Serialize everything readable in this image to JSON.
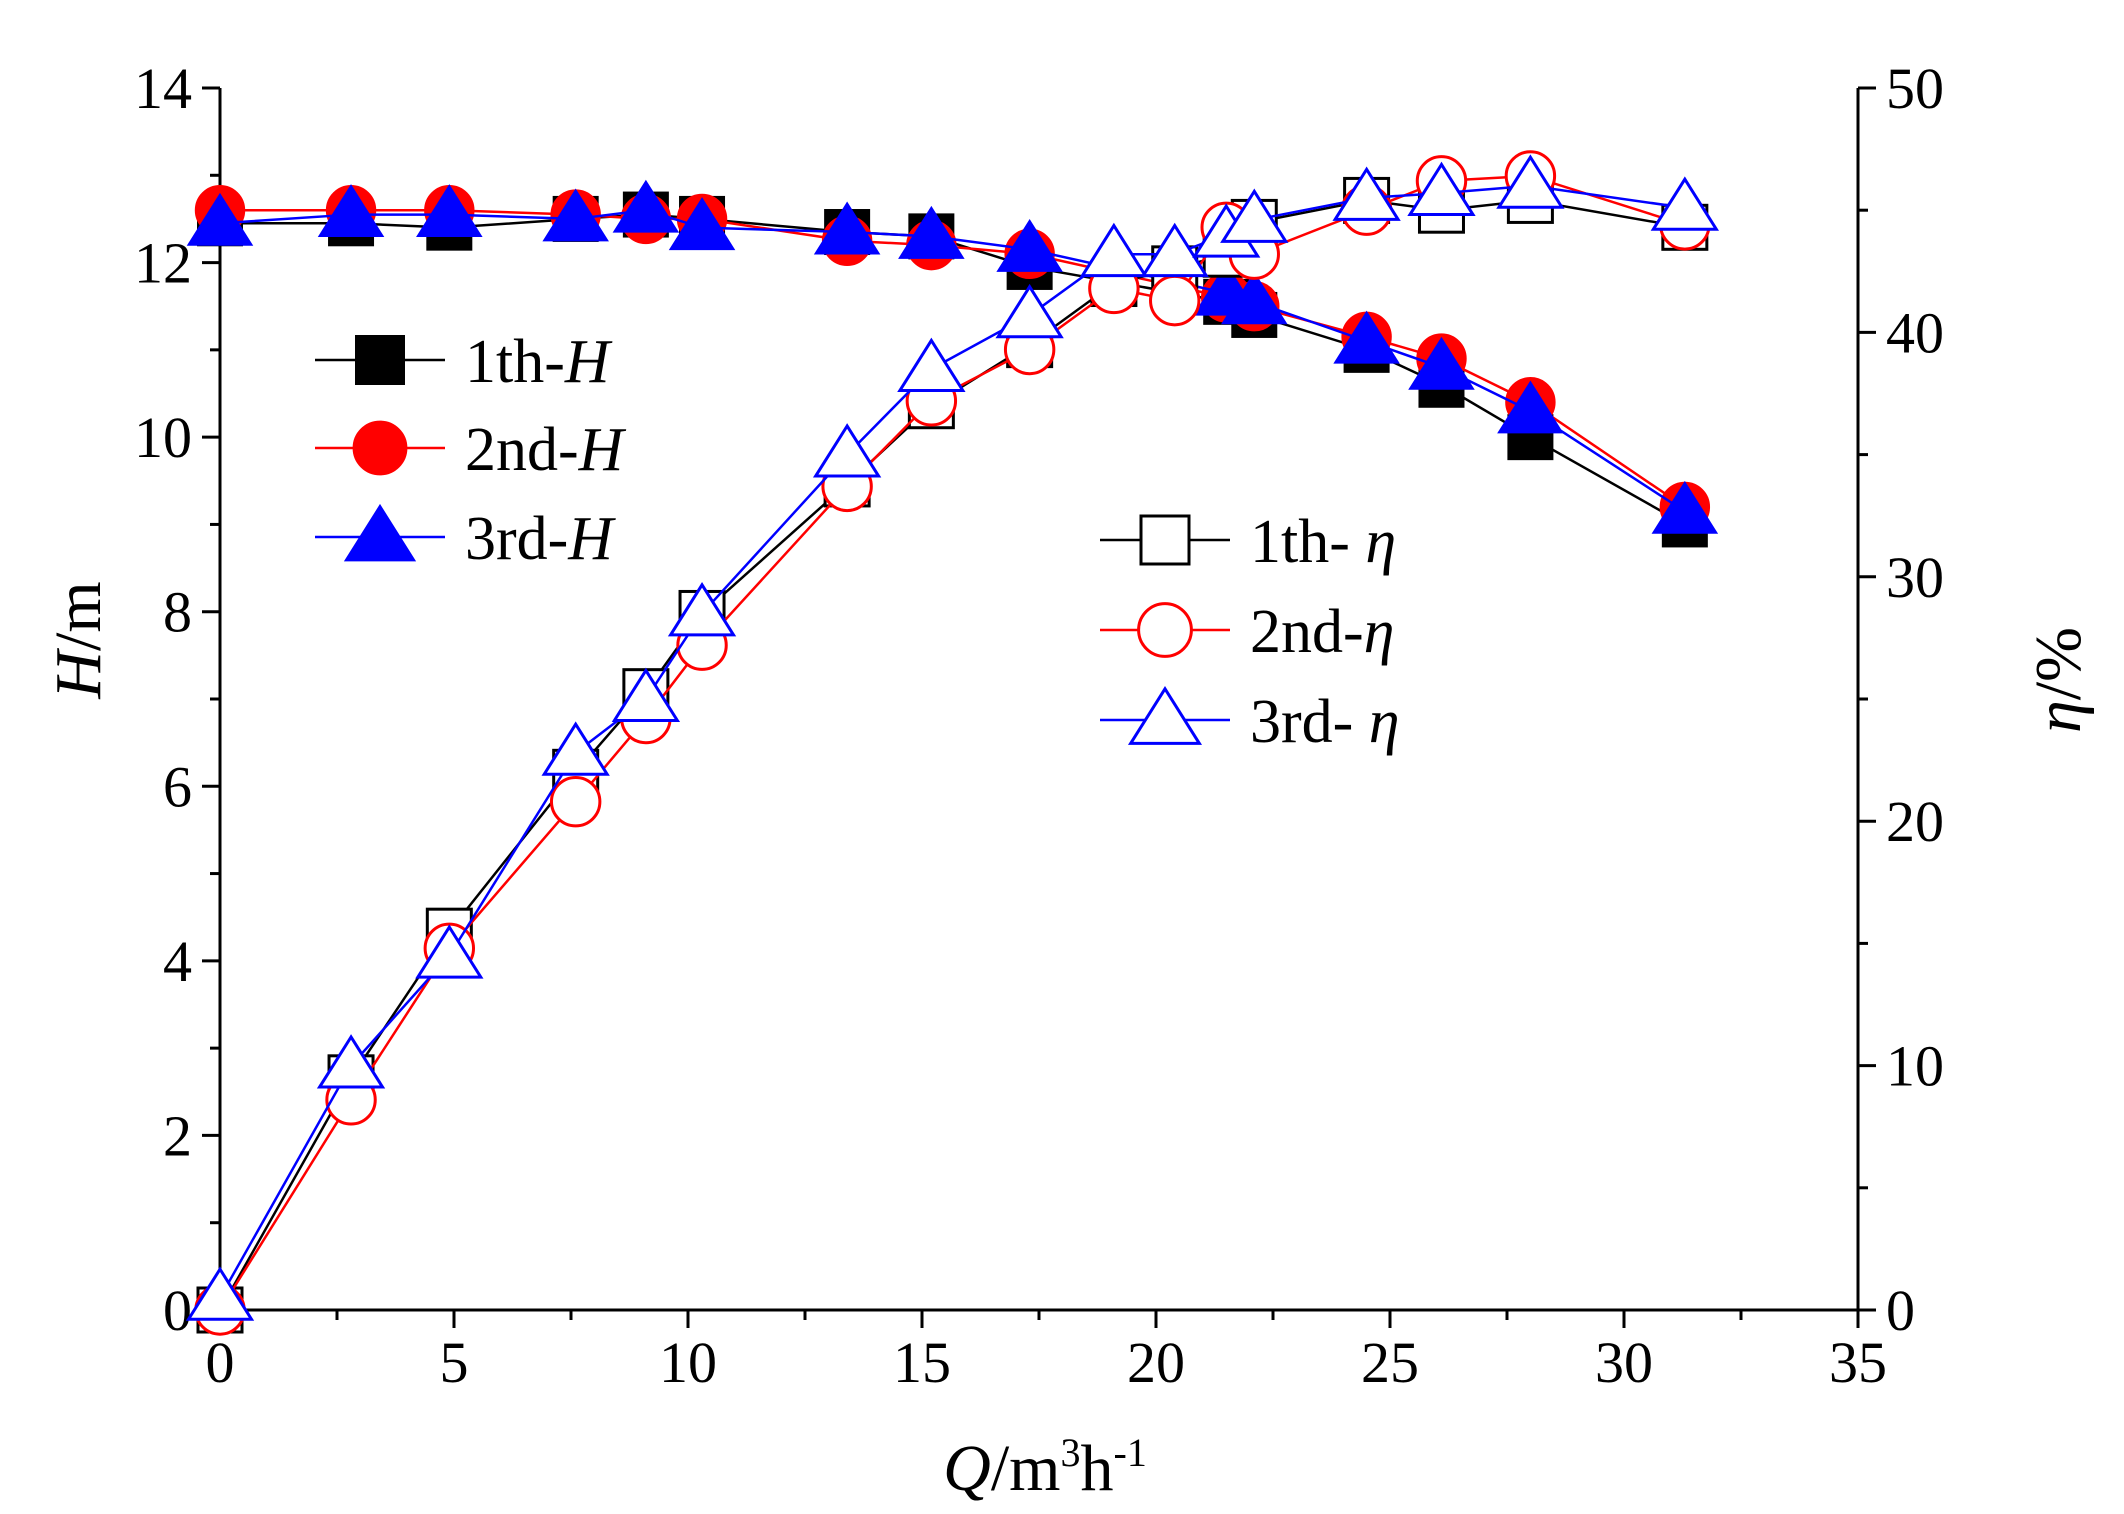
{
  "chart_data": {
    "type": "line",
    "xlabel": {
      "var": "Q",
      "unit_prefix": "/m",
      "sup1": "3",
      "mid": "h",
      "sup2": "-1"
    },
    "ylabel_left": {
      "var": "H",
      "unit": "/m"
    },
    "ylabel_right": {
      "var": "η",
      "unit": "/%"
    },
    "xlim": [
      0,
      35
    ],
    "ylim_left": [
      0,
      14
    ],
    "ylim_right": [
      0,
      50
    ],
    "xticks": [
      0,
      5,
      10,
      15,
      20,
      25,
      30,
      35
    ],
    "yticks_left": [
      0,
      2,
      4,
      6,
      8,
      10,
      12,
      14
    ],
    "yticks_right": [
      0,
      10,
      20,
      30,
      40,
      50
    ],
    "grid": false,
    "series": [
      {
        "name": "1th-H",
        "prefix": "1th-",
        "symbol": "H",
        "axis": "left",
        "color": "#000000",
        "marker": "square",
        "filled": true,
        "x": [
          0,
          2.8,
          4.9,
          7.6,
          9.1,
          10.3,
          13.4,
          15.2,
          17.3,
          21.5,
          22.1,
          24.5,
          26.1,
          28.0,
          31.3
        ],
        "y": [
          12.45,
          12.45,
          12.4,
          12.5,
          12.55,
          12.5,
          12.35,
          12.3,
          11.95,
          11.55,
          11.4,
          11.0,
          10.6,
          10.0,
          9.0
        ]
      },
      {
        "name": "2nd-H",
        "prefix": "2nd-",
        "symbol": "H",
        "axis": "left",
        "color": "#ff0000",
        "marker": "circle",
        "filled": true,
        "x": [
          0,
          2.8,
          4.9,
          7.6,
          9.1,
          10.3,
          13.4,
          15.2,
          17.3,
          21.5,
          22.1,
          24.5,
          26.1,
          28.0,
          31.3
        ],
        "y": [
          12.6,
          12.6,
          12.6,
          12.55,
          12.5,
          12.5,
          12.25,
          12.2,
          12.1,
          11.6,
          11.5,
          11.15,
          10.9,
          10.4,
          9.2
        ]
      },
      {
        "name": "3rd-H",
        "prefix": "3rd-",
        "symbol": "H",
        "axis": "left",
        "color": "#0000ff",
        "marker": "triangle",
        "filled": true,
        "x": [
          0,
          2.8,
          4.9,
          7.6,
          9.1,
          10.3,
          13.4,
          15.2,
          17.3,
          21.5,
          22.1,
          24.5,
          26.1,
          28.0,
          31.3
        ],
        "y": [
          12.45,
          12.55,
          12.55,
          12.5,
          12.6,
          12.4,
          12.35,
          12.3,
          12.15,
          11.65,
          11.55,
          11.1,
          10.8,
          10.3,
          9.15
        ]
      },
      {
        "name": "1th- η",
        "prefix": "1th- ",
        "symbol": "η",
        "axis": "right",
        "color": "#000000",
        "marker": "square",
        "filled": false,
        "x": [
          0,
          2.8,
          4.9,
          7.6,
          9.1,
          10.3,
          13.4,
          15.2,
          17.3,
          19.1,
          20.4,
          21.5,
          22.1,
          24.5,
          26.1,
          28.0,
          31.3
        ],
        "y": [
          0,
          9.5,
          15.5,
          22,
          25.3,
          28.5,
          33.8,
          37.0,
          39.5,
          42.0,
          42.6,
          43.2,
          44.5,
          45.4,
          45.0,
          45.4,
          44.3
        ]
      },
      {
        "name": "2nd-η",
        "prefix": "2nd-",
        "symbol": "η",
        "axis": "right",
        "color": "#ff0000",
        "marker": "circle",
        "filled": false,
        "x": [
          0,
          2.8,
          4.9,
          7.6,
          9.1,
          10.3,
          13.4,
          15.2,
          17.3,
          19.1,
          20.4,
          21.5,
          22.1,
          24.5,
          26.1,
          28.0,
          31.3
        ],
        "y": [
          0,
          8.6,
          14.8,
          20.8,
          24.2,
          27.2,
          33.7,
          37.2,
          39.3,
          41.8,
          41.3,
          44.3,
          43.2,
          45.0,
          46.2,
          46.4,
          44.4
        ]
      },
      {
        "name": "3rd- η",
        "prefix": "3rd- ",
        "symbol": "η",
        "axis": "right",
        "color": "#0000ff",
        "marker": "triangle",
        "filled": false,
        "x": [
          0,
          2.8,
          4.9,
          7.6,
          9.1,
          10.3,
          13.4,
          15.2,
          17.3,
          19.1,
          20.4,
          21.5,
          22.1,
          24.5,
          26.1,
          28.0,
          31.3
        ],
        "y": [
          0.5,
          10.0,
          14.5,
          22.8,
          25.0,
          28.5,
          35.0,
          38.5,
          40.7,
          43.2,
          43.2,
          44.0,
          44.6,
          45.5,
          45.7,
          46.0,
          45.1
        ]
      }
    ]
  }
}
